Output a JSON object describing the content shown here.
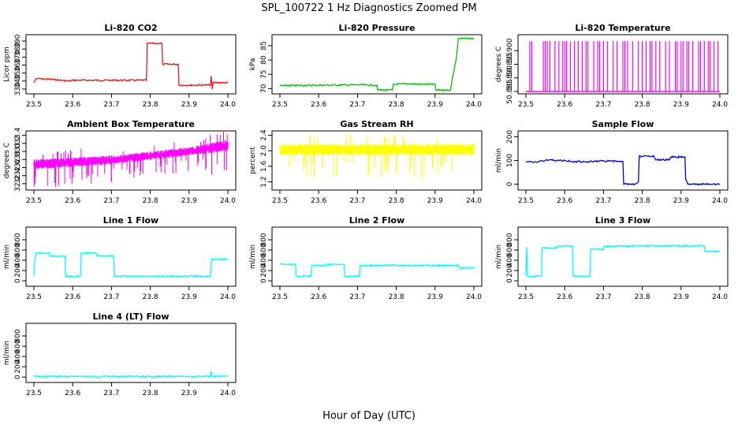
{
  "figure": {
    "title": "SPL_100722  1 Hz Diagnostics Zoomed PM",
    "xlabel": "Hour of Day (UTC)"
  },
  "chart_data": [
    {
      "type": "line",
      "title": "Li-820 CO2",
      "ylabel": "Licor ppm",
      "color": "#e31a1c",
      "xlim": [
        23.5,
        24.0
      ],
      "ylim": [
        327,
        395
      ],
      "xticks": [
        "23.5",
        "23.6",
        "23.7",
        "23.8",
        "23.9",
        "24.0"
      ],
      "yticks": [
        "330",
        "340",
        "350",
        "360",
        "370",
        "380",
        "390"
      ],
      "series": [
        {
          "x": [
            23.5,
            23.505,
            23.51,
            23.55,
            23.59,
            23.6,
            23.65,
            23.7,
            23.79,
            23.792,
            23.83,
            23.832,
            23.872,
            23.874,
            23.94,
            23.955,
            23.957,
            23.96,
            23.962,
            24.0
          ],
          "y": [
            338,
            343,
            343,
            342,
            340,
            341,
            341,
            341,
            341,
            387,
            387,
            361,
            361,
            335,
            335,
            335,
            346,
            330,
            338,
            338
          ]
        }
      ]
    },
    {
      "type": "line",
      "title": "Li-820 Pressure",
      "ylabel": "kPa",
      "color": "#00c000",
      "xlim": [
        23.5,
        24.0
      ],
      "ylim": [
        69,
        88
      ],
      "xticks": [
        "23.5",
        "23.6",
        "23.7",
        "23.8",
        "23.9",
        "24.0"
      ],
      "yticks": [
        "70",
        "75",
        "80",
        "85"
      ],
      "series": [
        {
          "x": [
            23.5,
            23.6,
            23.7,
            23.75,
            23.752,
            23.79,
            23.792,
            23.83,
            23.87,
            23.9,
            23.902,
            23.94,
            23.942,
            23.955,
            23.96,
            23.98,
            24.0
          ],
          "y": [
            71,
            71.2,
            71.3,
            71.2,
            69.5,
            69.5,
            71.5,
            71.7,
            71.5,
            71.5,
            69.5,
            69.5,
            71.5,
            81,
            87.5,
            87.5,
            87.5
          ]
        }
      ]
    },
    {
      "type": "line",
      "title": "Li-820 Temperature",
      "ylabel": "degrees C",
      "color": "#ff00ff",
      "xlim": [
        23.5,
        24.0
      ],
      "ylim": [
        50.885,
        50.905
      ],
      "xticks": [
        "23.5",
        "23.6",
        "23.7",
        "23.8",
        "23.9",
        "24.0"
      ],
      "yticks": [
        "50.885",
        "50.890",
        "50.895",
        "50.900"
      ],
      "base": 50.885,
      "top": 50.9035,
      "spikes": [
        23.51,
        23.515,
        23.545,
        23.55,
        23.555,
        23.562,
        23.575,
        23.585,
        23.595,
        23.6,
        23.605,
        23.615,
        23.625,
        23.635,
        23.645,
        23.655,
        23.66,
        23.675,
        23.685,
        23.69,
        23.7,
        23.71,
        23.725,
        23.735,
        23.75,
        23.755,
        23.762,
        23.775,
        23.79,
        23.8,
        23.81,
        23.82,
        23.825,
        23.835,
        23.845,
        23.86,
        23.87,
        23.885,
        23.89,
        23.9,
        23.905,
        23.915,
        23.92,
        23.93,
        23.945,
        23.95,
        23.96,
        23.97,
        23.975,
        23.985,
        23.995
      ]
    },
    {
      "type": "line",
      "title": "Ambient Box Temperature",
      "ylabel": "degrees C",
      "color": "#ff00ff",
      "xlim": [
        23.5,
        24.0
      ],
      "ylim": [
        32.1,
        33.45
      ],
      "xticks": [
        "23.5",
        "23.6",
        "23.7",
        "23.8",
        "23.9",
        "24.0"
      ],
      "yticks": [
        "32.2",
        "32.4",
        "32.6",
        "32.8",
        "33.0",
        "33.2",
        "33.4"
      ],
      "band": {
        "x": [
          23.5,
          23.6,
          23.7,
          23.8,
          23.9,
          24.0
        ],
        "lo": [
          32.55,
          32.62,
          32.68,
          32.78,
          32.9,
          33.0
        ],
        "hi": [
          32.8,
          32.85,
          32.9,
          33.0,
          33.1,
          33.3
        ]
      }
    },
    {
      "type": "line",
      "title": "Gas Stream RH",
      "ylabel": "percent",
      "color": "#ffff00",
      "xlim": [
        23.5,
        24.0
      ],
      "ylim": [
        1.05,
        2.45
      ],
      "xticks": [
        "23.5",
        "23.6",
        "23.7",
        "23.8",
        "23.9",
        "24.0"
      ],
      "yticks": [
        "1.2",
        "1.6",
        "2.0",
        "2.4"
      ],
      "band": {
        "x": [
          23.5,
          24.0
        ],
        "lo": [
          1.88,
          1.88
        ],
        "hi": [
          2.18,
          2.18
        ]
      }
    },
    {
      "type": "line",
      "title": "Sample Flow",
      "ylabel": "ml/min",
      "color": "#0000cd",
      "xlim": [
        23.5,
        24.0
      ],
      "ylim": [
        -15,
        215
      ],
      "xticks": [
        "23.5",
        "23.6",
        "23.7",
        "23.8",
        "23.9",
        "24.0"
      ],
      "yticks": [
        "0",
        "100",
        "200"
      ],
      "series": [
        {
          "x": [
            23.5,
            23.52,
            23.54,
            23.56,
            23.6,
            23.62,
            23.66,
            23.7,
            23.74,
            23.75,
            23.752,
            23.78,
            23.79,
            23.792,
            23.83,
            23.834,
            23.87,
            23.874,
            23.91,
            23.912,
            23.918,
            24.0
          ],
          "y": [
            96,
            92,
            98,
            102,
            100,
            95,
            95,
            98,
            96,
            96,
            0,
            0,
            10,
            118,
            118,
            103,
            103,
            115,
            115,
            20,
            0,
            0
          ]
        }
      ]
    },
    {
      "type": "line",
      "title": "Line 1 Flow",
      "ylabel": "ml/min",
      "color": "#00ffff",
      "xlim": [
        23.5,
        24.0
      ],
      "ylim": [
        -60,
        1000
      ],
      "xticks": [
        "23.5",
        "23.6",
        "23.7",
        "23.8",
        "23.9",
        "24.0"
      ],
      "yticks": [
        "0",
        "200",
        "400",
        "600",
        "800"
      ],
      "series": [
        {
          "x": [
            23.5,
            23.502,
            23.505,
            23.54,
            23.542,
            23.58,
            23.582,
            23.62,
            23.622,
            23.66,
            23.662,
            23.705,
            23.707,
            23.8,
            23.9,
            23.955,
            23.958,
            24.0
          ],
          "y": [
            100,
            400,
            540,
            540,
            480,
            480,
            90,
            90,
            540,
            540,
            490,
            490,
            90,
            90,
            90,
            90,
            420,
            420
          ]
        }
      ]
    },
    {
      "type": "line",
      "title": "Line 2 Flow",
      "ylabel": "ml/min",
      "color": "#00ffff",
      "xlim": [
        23.5,
        24.0
      ],
      "ylim": [
        -60,
        1000
      ],
      "xticks": [
        "23.5",
        "23.6",
        "23.7",
        "23.8",
        "23.9",
        "24.0"
      ],
      "yticks": [
        "0",
        "200",
        "400",
        "600",
        "800"
      ],
      "series": [
        {
          "x": [
            23.5,
            23.54,
            23.542,
            23.58,
            23.582,
            23.62,
            23.622,
            23.665,
            23.667,
            23.705,
            23.707,
            23.8,
            23.9,
            23.96,
            23.962,
            24.0
          ],
          "y": [
            320,
            320,
            90,
            90,
            300,
            300,
            320,
            320,
            90,
            90,
            300,
            300,
            300,
            300,
            250,
            250
          ]
        }
      ]
    },
    {
      "type": "line",
      "title": "Line 3 Flow",
      "ylabel": "ml/min",
      "color": "#00ffff",
      "xlim": [
        23.5,
        24.0
      ],
      "ylim": [
        -60,
        1000
      ],
      "xticks": [
        "23.5",
        "23.6",
        "23.7",
        "23.8",
        "23.9",
        "24.0"
      ],
      "yticks": [
        "0",
        "200",
        "400",
        "600",
        "800"
      ],
      "series": [
        {
          "x": [
            23.5,
            23.502,
            23.504,
            23.54,
            23.542,
            23.58,
            23.582,
            23.62,
            23.622,
            23.665,
            23.667,
            23.7,
            23.702,
            23.8,
            23.9,
            23.96,
            23.962,
            24.0
          ],
          "y": [
            100,
            660,
            90,
            90,
            640,
            640,
            680,
            680,
            90,
            90,
            620,
            620,
            670,
            680,
            680,
            680,
            570,
            570
          ]
        }
      ]
    },
    {
      "type": "line",
      "title": "Line 4 (LT) Flow",
      "ylabel": "ml/min",
      "color": "#00ffff",
      "xlim": [
        23.5,
        24.0
      ],
      "ylim": [
        -60,
        1000
      ],
      "xticks": [
        "23.5",
        "23.6",
        "23.7",
        "23.8",
        "23.9",
        "24.0"
      ],
      "yticks": [
        "0",
        "200",
        "400",
        "600",
        "800"
      ],
      "series": [
        {
          "x": [
            23.5,
            23.6,
            23.7,
            23.8,
            23.9,
            23.955,
            23.957,
            23.959,
            23.961,
            24.0
          ],
          "y": [
            10,
            10,
            10,
            10,
            10,
            10,
            110,
            10,
            10,
            10
          ]
        }
      ]
    }
  ]
}
